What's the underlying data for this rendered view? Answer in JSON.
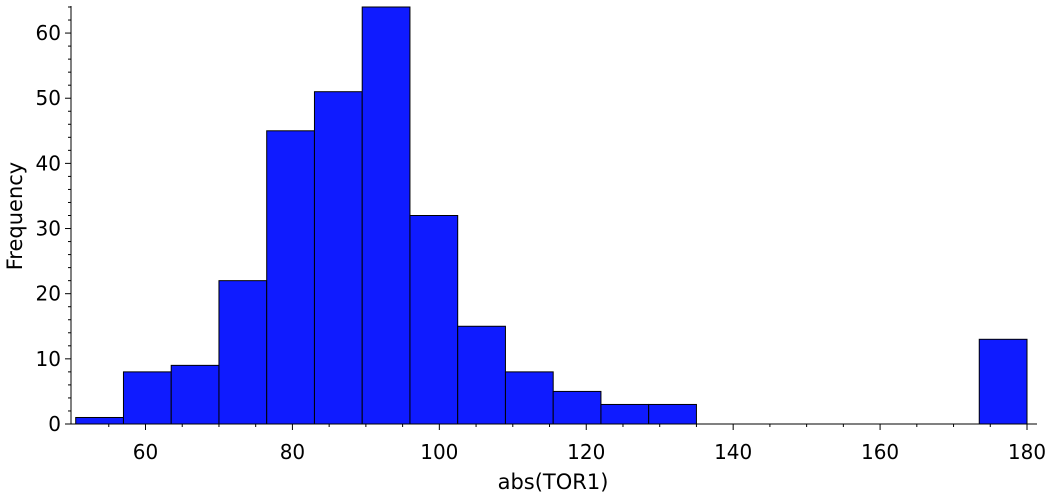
{
  "chart_data": {
    "type": "bar",
    "title": "",
    "xlabel": "abs(TOR1)",
    "ylabel": "Frequency",
    "xlim": [
      50,
      180
    ],
    "ylim": [
      0,
      64
    ],
    "x_ticks": [
      60,
      80,
      100,
      120,
      140,
      160,
      180
    ],
    "y_ticks": [
      0,
      10,
      20,
      30,
      40,
      50,
      60
    ],
    "grid": false,
    "bar_color": "#0f1bff",
    "bins": [
      {
        "x0": 50.5,
        "x1": 57.0,
        "count": 1
      },
      {
        "x0": 57.0,
        "x1": 63.5,
        "count": 8
      },
      {
        "x0": 63.5,
        "x1": 70.0,
        "count": 9
      },
      {
        "x0": 70.0,
        "x1": 76.5,
        "count": 22
      },
      {
        "x0": 76.5,
        "x1": 83.0,
        "count": 45
      },
      {
        "x0": 83.0,
        "x1": 89.5,
        "count": 51
      },
      {
        "x0": 89.5,
        "x1": 96.0,
        "count": 64
      },
      {
        "x0": 96.0,
        "x1": 102.5,
        "count": 32
      },
      {
        "x0": 102.5,
        "x1": 109.0,
        "count": 15
      },
      {
        "x0": 109.0,
        "x1": 115.5,
        "count": 8
      },
      {
        "x0": 115.5,
        "x1": 122.0,
        "count": 5
      },
      {
        "x0": 122.0,
        "x1": 128.5,
        "count": 3
      },
      {
        "x0": 128.5,
        "x1": 135.0,
        "count": 3
      },
      {
        "x0": 173.5,
        "x1": 180.0,
        "count": 13
      }
    ]
  }
}
